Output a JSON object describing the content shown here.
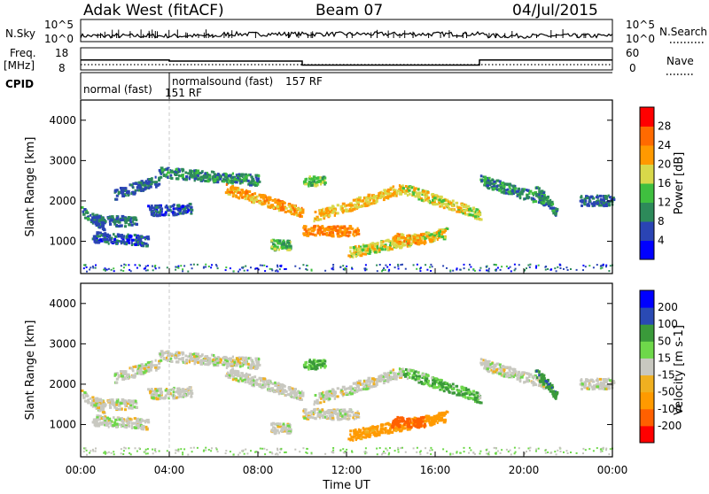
{
  "header": {
    "station": "Adak West (fitACF)",
    "beam": "Beam 07",
    "date": "04/Jul/2015"
  },
  "top_panels": {
    "nsky_label": "N.Sky",
    "nsky_ticks": [
      "10^5",
      "10^0"
    ],
    "nsearch_label": "N.Search",
    "nsearch_ticks": [
      "10^5",
      "10^0"
    ],
    "freq_label_line1": "Freq.",
    "freq_label_line2": "[MHz]",
    "freq_ticks": [
      "18",
      "8"
    ],
    "nave_label": "Nave",
    "nave_ticks": [
      "60",
      "0"
    ],
    "cpid_label": "CPID",
    "cpid_segments": [
      {
        "name": "normal (fast)",
        "start_hour": 0,
        "id_label": "151 RF"
      },
      {
        "name": "normalsound (fast)",
        "start_hour": 4,
        "id_label": "157 RF"
      }
    ]
  },
  "colors": {
    "power": [
      "#0000ff",
      "#2a44b4",
      "#2d8a5a",
      "#3fbf3f",
      "#d8d84a",
      "#ff9900",
      "#ff6a00",
      "#ff0000"
    ],
    "velocity": [
      "#ff0000",
      "#ff6000",
      "#ff9a00",
      "#f0b020",
      "#c8c8c0",
      "#6ed84a",
      "#3a9a3a",
      "#2a4ab4",
      "#0000ff"
    ],
    "grey_scatter": "#c4c4bc"
  },
  "chart_data": {
    "type": "heatmap",
    "x_label": "Time UT",
    "x_range_hours": [
      0,
      24
    ],
    "x_ticks": [
      "00:00",
      "04:00",
      "08:00",
      "12:00",
      "16:00",
      "20:00",
      "00:00"
    ],
    "y_label": "Slant Range [km]",
    "y_range_km": [
      200,
      4500
    ],
    "y_ticks": [
      "1000",
      "2000",
      "3000",
      "4000"
    ],
    "frequency_mhz": [
      {
        "from_hour": 0,
        "to_hour": 4,
        "value": 12.5
      },
      {
        "from_hour": 4,
        "to_hour": 10,
        "value": 12.0
      },
      {
        "from_hour": 10,
        "to_hour": 18,
        "value": 10.2
      },
      {
        "from_hour": 18,
        "to_hour": 24,
        "value": 12.5
      }
    ],
    "power_panel": {
      "colorbar_label": "Power [dB]",
      "colorbar_ticks": [
        "4",
        "8",
        "12",
        "16",
        "20",
        "24",
        "28"
      ],
      "colorbar_range": [
        0,
        32
      ]
    },
    "velocity_panel": {
      "colorbar_label": "Velocity [m s-1]",
      "colorbar_ticks": [
        "200",
        "100",
        "50",
        "15",
        "-15",
        "-50",
        "-100",
        "-200"
      ]
    },
    "scatter_bands": [
      {
        "t0": 0.0,
        "t1": 1.0,
        "r0": 1750,
        "r1": 1400,
        "p": 10,
        "v": 0
      },
      {
        "t0": 0.5,
        "t1": 2.5,
        "r0": 1500,
        "r1": 1500,
        "p": 8,
        "v": 0
      },
      {
        "t0": 0.5,
        "t1": 3.0,
        "r0": 1100,
        "r1": 1000,
        "p": 6,
        "v": 0
      },
      {
        "t0": 1.5,
        "t1": 3.5,
        "r0": 2150,
        "r1": 2500,
        "p": 8,
        "v": 0
      },
      {
        "t0": 3.0,
        "t1": 5.0,
        "r0": 1750,
        "r1": 1800,
        "p": 7,
        "v": 0
      },
      {
        "t0": 3.5,
        "t1": 8.0,
        "r0": 2700,
        "r1": 2500,
        "p": 10,
        "v": 0
      },
      {
        "t0": 6.5,
        "t1": 10.0,
        "r0": 2300,
        "r1": 1700,
        "p": 22,
        "v": 0
      },
      {
        "t0": 8.5,
        "t1": 9.5,
        "r0": 900,
        "r1": 900,
        "p": 14,
        "v": 0
      },
      {
        "t0": 10.0,
        "t1": 12.5,
        "r0": 1250,
        "r1": 1250,
        "p": 24,
        "v": 0
      },
      {
        "t0": 10.5,
        "t1": 14.5,
        "r0": 1600,
        "r1": 2300,
        "p": 20,
        "v": 0
      },
      {
        "t0": 12.0,
        "t1": 16.5,
        "r0": 700,
        "r1": 1200,
        "p": 18,
        "v": -50
      },
      {
        "t0": 14.0,
        "t1": 15.5,
        "r0": 1050,
        "r1": 1050,
        "p": 22,
        "v": -120
      },
      {
        "t0": 14.5,
        "t1": 18.0,
        "r0": 2300,
        "r1": 1650,
        "p": 18,
        "v": 30
      },
      {
        "t0": 10.0,
        "t1": 11.0,
        "r0": 2500,
        "r1": 2500,
        "p": 14,
        "v": 40
      },
      {
        "t0": 18.0,
        "t1": 21.0,
        "r0": 2500,
        "r1": 2000,
        "p": 10,
        "v": 0
      },
      {
        "t0": 20.5,
        "t1": 21.5,
        "r0": 2300,
        "r1": 1700,
        "p": 10,
        "v": 60
      },
      {
        "t0": 22.5,
        "t1": 24.0,
        "r0": 2000,
        "r1": 2000,
        "p": 8,
        "v": 0
      }
    ]
  }
}
